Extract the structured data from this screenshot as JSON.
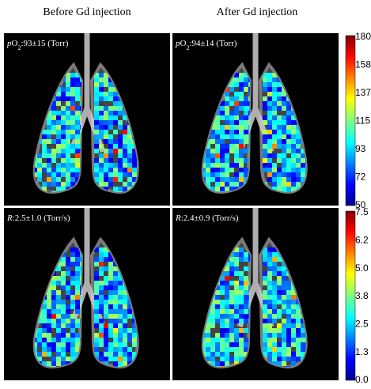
{
  "column_titles": [
    "Before Gd injection",
    "After Gd injection"
  ],
  "panels": [
    {
      "symbol": "p",
      "species": "O",
      "subscript": "2",
      "value": ":93±15 (Torr)"
    },
    {
      "symbol": "p",
      "species": "O",
      "subscript": "2",
      "value": ":94±14 (Torr)"
    },
    {
      "symbol": "R",
      "value": ":2.5±1.0 (Torr/s)"
    },
    {
      "symbol": "R",
      "value": ":2.4±0.9 (Torr/s)"
    }
  ],
  "colorbars": [
    {
      "ticks": [
        "180",
        "158",
        "137",
        "115",
        "93",
        "72",
        "50"
      ]
    },
    {
      "ticks": [
        "7.5",
        "6.2",
        "5.0",
        "3.8",
        "2.5",
        "1.3",
        "0.0"
      ]
    }
  ]
}
